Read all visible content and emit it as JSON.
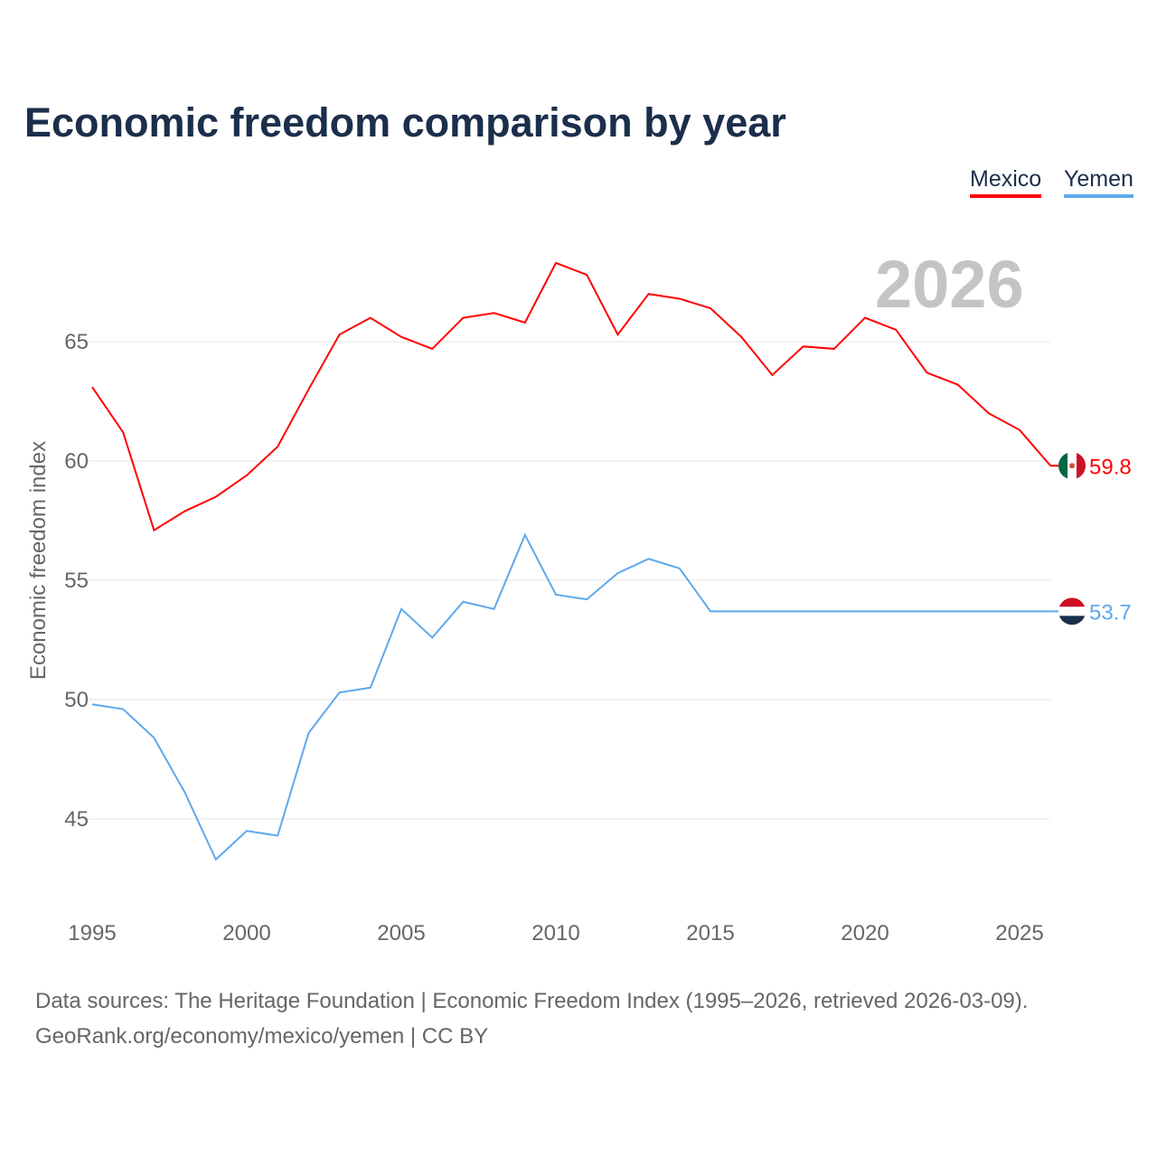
{
  "title": "Economic freedom comparison by year",
  "year_label": "2026",
  "source_line1": "Data sources: The Heritage Foundation | Economic Freedom Index (1995–2026, retrieved 2026-03-09).",
  "source_line2": "GeoRank.org/economy/mexico/yemen | CC BY",
  "chart_data": {
    "type": "line",
    "ylabel": "Economic freedom index",
    "xlabel": "",
    "xlim": [
      1995,
      2026
    ],
    "ylim": [
      41.5,
      69
    ],
    "xticks": [
      1995,
      2000,
      2005,
      2010,
      2015,
      2020,
      2025
    ],
    "yticks": [
      45,
      50,
      55,
      60,
      65
    ],
    "grid": true,
    "legend": "top-right",
    "x": [
      1995,
      1996,
      1997,
      1998,
      1999,
      2000,
      2001,
      2002,
      2003,
      2004,
      2005,
      2006,
      2007,
      2008,
      2009,
      2010,
      2011,
      2012,
      2013,
      2014,
      2015,
      2016,
      2017,
      2018,
      2019,
      2020,
      2021,
      2022,
      2023,
      2024,
      2025,
      2026
    ],
    "series": [
      {
        "name": "Mexico",
        "color": "#ff0000",
        "end_label": "59.8",
        "flag": "mexico-flag-icon",
        "values": [
          63.1,
          61.2,
          57.1,
          57.9,
          58.5,
          59.4,
          60.6,
          63.0,
          65.3,
          66.0,
          65.2,
          64.7,
          66.0,
          66.2,
          65.8,
          68.3,
          67.8,
          65.3,
          67.0,
          66.8,
          66.4,
          65.2,
          63.6,
          64.8,
          64.7,
          66.0,
          65.5,
          63.7,
          63.2,
          62.0,
          61.3,
          59.8
        ]
      },
      {
        "name": "Yemen",
        "color": "#5ea8ec",
        "end_label": "53.7",
        "flag": "yemen-flag-icon",
        "values": [
          49.8,
          49.6,
          48.4,
          46.1,
          43.3,
          44.5,
          44.3,
          48.6,
          50.3,
          50.5,
          53.8,
          52.6,
          54.1,
          53.8,
          56.9,
          54.4,
          54.2,
          55.3,
          55.9,
          55.5,
          53.7,
          53.7,
          53.7,
          53.7,
          53.7,
          53.7,
          53.7,
          53.7,
          53.7,
          53.7,
          53.7,
          53.7
        ]
      }
    ]
  }
}
